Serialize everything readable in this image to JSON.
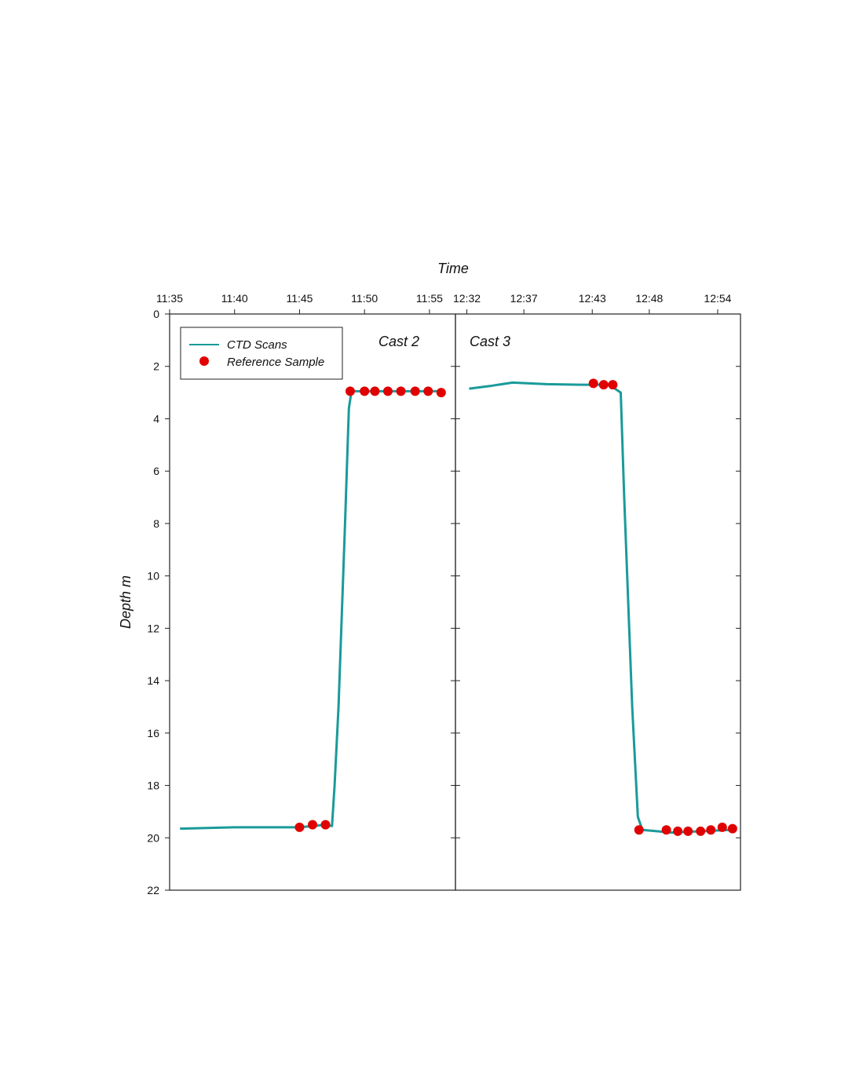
{
  "chart_data": {
    "type": "line",
    "title": "",
    "xlabel": "Time",
    "ylabel": "Depth m",
    "ylim": [
      22,
      0
    ],
    "y_ticks": [
      0,
      2,
      4,
      6,
      8,
      10,
      12,
      14,
      16,
      18,
      20,
      22
    ],
    "grid": false,
    "legend_position": "top-left",
    "legend": [
      {
        "label": "CTD Scans",
        "kind": "line",
        "color": "#1a9a9a"
      },
      {
        "label": "Reference Sample",
        "kind": "marker",
        "color": "#e00000"
      }
    ],
    "panels": [
      {
        "name": "Cast 2",
        "x_ticks": [
          "11:35",
          "11:40",
          "11:45",
          "11:50",
          "11:55"
        ],
        "xlim": [
          "11:35",
          "11:57"
        ],
        "ctd_scans": {
          "x": [
            "11:35:48",
            "11:40:00",
            "11:45:00",
            "11:47:00",
            "11:47:30",
            "11:47:42",
            "11:48:00",
            "11:48:30",
            "11:48:48",
            "11:49:00",
            "11:50:00",
            "11:52:00",
            "11:54:00",
            "11:55:54"
          ],
          "y": [
            19.65,
            19.6,
            19.6,
            19.5,
            19.55,
            18.0,
            15.0,
            8.0,
            3.6,
            2.95,
            2.95,
            2.95,
            2.95,
            2.95
          ]
        },
        "reference_samples": {
          "x": [
            "11:45:00",
            "11:46:00",
            "11:47:00",
            "11:48:54",
            "11:50:00",
            "11:50:48",
            "11:51:48",
            "11:52:48",
            "11:53:54",
            "11:54:54",
            "11:55:54"
          ],
          "y": [
            19.6,
            19.5,
            19.5,
            2.95,
            2.95,
            2.95,
            2.95,
            2.95,
            2.95,
            2.95,
            3.0
          ]
        }
      },
      {
        "name": "Cast 3",
        "x_ticks": [
          "12:32",
          "12:37",
          "12:43",
          "12:48",
          "12:54"
        ],
        "xlim": [
          "12:31",
          "12:56"
        ],
        "ctd_scans": {
          "x": [
            "12:32:12",
            "12:34:00",
            "12:36:00",
            "12:39:00",
            "12:42:00",
            "12:43:24",
            "12:44:30",
            "12:45:30",
            "12:45:48",
            "12:46:30",
            "12:47:00",
            "12:47:24",
            "12:50:00",
            "12:55:00"
          ],
          "y": [
            2.85,
            2.75,
            2.62,
            2.68,
            2.7,
            2.7,
            2.7,
            3.0,
            7.0,
            15.0,
            19.2,
            19.7,
            19.8,
            19.7
          ]
        },
        "reference_samples": {
          "x": [
            "12:43:06",
            "12:44:00",
            "12:44:48",
            "12:47:06",
            "12:49:30",
            "12:50:30",
            "12:51:24",
            "12:52:30",
            "12:53:24",
            "12:54:24",
            "12:55:18"
          ],
          "y": [
            2.65,
            2.7,
            2.7,
            19.7,
            19.7,
            19.75,
            19.75,
            19.75,
            19.7,
            19.6,
            19.65
          ]
        }
      }
    ]
  }
}
